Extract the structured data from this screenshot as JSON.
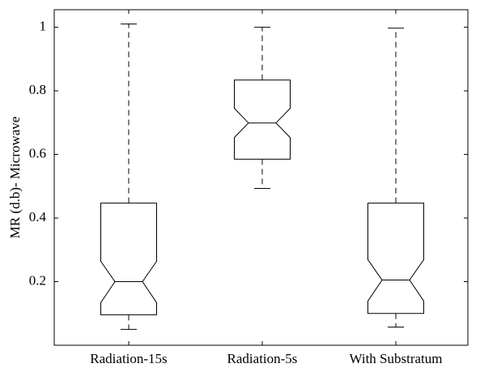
{
  "chart_data": {
    "type": "box",
    "ylabel": "MR (d.b)- Microwave",
    "categories": [
      "Radiation-15s",
      "Radiation-5s",
      "With Substratum"
    ],
    "min": [
      0.05,
      0.493,
      0.057
    ],
    "q1": [
      0.096,
      0.585,
      0.1
    ],
    "median": [
      0.2,
      0.699,
      0.205
    ],
    "q3": [
      0.447,
      0.834,
      0.447
    ],
    "max": [
      1.01,
      1.0,
      0.997
    ],
    "notch_low": [
      0.134,
      0.653,
      0.139
    ],
    "notch_high": [
      0.264,
      0.745,
      0.269
    ],
    "color": "#000000",
    "ylim": [
      0,
      1.055
    ],
    "yticks": [
      0.2,
      0.4,
      0.6,
      0.8,
      1
    ],
    "grid": false
  }
}
